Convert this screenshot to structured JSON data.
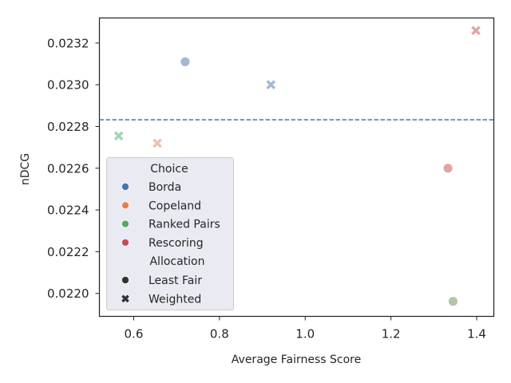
{
  "chart_data": {
    "type": "scatter",
    "xlabel": "Average Fairness Score",
    "ylabel": "nDCG",
    "xlim": [
      0.52,
      1.44
    ],
    "ylim": [
      0.02189,
      0.02332
    ],
    "x_ticks": [
      0.6,
      0.8,
      1.0,
      1.2,
      1.4
    ],
    "y_ticks": [
      0.022,
      0.0222,
      0.0224,
      0.0226,
      0.0228,
      0.023,
      0.0232
    ],
    "x_tick_labels": [
      "0.6",
      "0.8",
      "1.0",
      "1.2",
      "1.4"
    ],
    "y_tick_labels": [
      "0.0220",
      "0.0222",
      "0.0224",
      "0.0226",
      "0.0228",
      "0.0230",
      "0.0232"
    ],
    "reference_line": {
      "y": 0.022832,
      "style": "dashed",
      "color": "#4c72b0"
    },
    "points": [
      {
        "choice": "Borda",
        "allocation": "Least Fair",
        "x": 0.72,
        "y": 0.02311
      },
      {
        "choice": "Borda",
        "allocation": "Weighted",
        "x": 0.92,
        "y": 0.023
      },
      {
        "choice": "Copeland",
        "allocation": "Weighted",
        "x": 0.655,
        "y": 0.02272
      },
      {
        "choice": "Ranked Pairs",
        "allocation": "Weighted",
        "x": 0.565,
        "y": 0.022755
      },
      {
        "choice": "Ranked Pairs",
        "allocation": "Least Fair",
        "x": 1.345,
        "y": 0.021962
      },
      {
        "choice": "Rescoring",
        "allocation": "Least Fair",
        "x": 1.333,
        "y": 0.0226
      },
      {
        "choice": "Rescoring",
        "allocation": "Weighted",
        "x": 1.398,
        "y": 0.02326
      }
    ],
    "choice_colors": {
      "Borda": "#4c72b0",
      "Copeland": "#dd8452",
      "Ranked Pairs": "#55a868",
      "Rescoring": "#c44e52"
    },
    "point_color_overrides": {
      "Ranked Pairs|Least Fair": "#6a8f4e"
    },
    "allocation_markers": {
      "Least Fair": "circle",
      "Weighted": "cross"
    },
    "grid": false,
    "legend": {
      "position": "lower-left",
      "choice_title": "Choice",
      "choice_entries": [
        "Borda",
        "Copeland",
        "Ranked Pairs",
        "Rescoring"
      ],
      "allocation_title": "Allocation",
      "allocation_entries": [
        "Least Fair",
        "Weighted"
      ],
      "allocation_marker_color": "#333333"
    }
  }
}
